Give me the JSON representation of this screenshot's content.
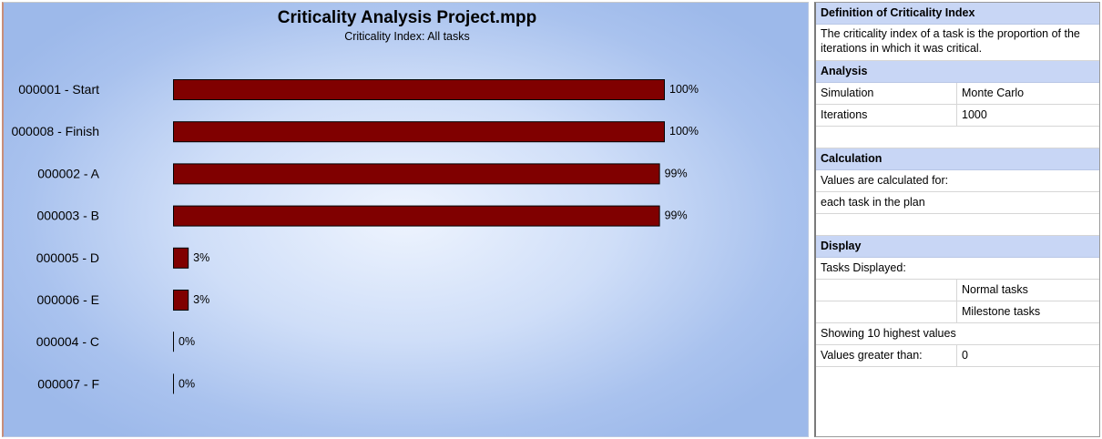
{
  "chart_data": {
    "type": "bar",
    "orientation": "horizontal",
    "title": "Criticality Analysis Project.mpp",
    "subtitle": "Criticality Index: All tasks",
    "categories": [
      "000001 - Start",
      "000008 - Finish",
      "000002 - A",
      "000003 - B",
      "000005 - D",
      "000006 - E",
      "000004 - C",
      "000007 - F"
    ],
    "values": [
      100,
      100,
      99,
      99,
      3,
      3,
      0,
      0
    ],
    "value_labels": [
      "100%",
      "100%",
      "99%",
      "99%",
      "3%",
      "3%",
      "0%",
      "0%"
    ],
    "xlim": [
      0,
      100
    ],
    "bar_color": "#800000",
    "grid": false
  },
  "side": {
    "definition_title": "Definition of Criticality Index",
    "definition_text": "The criticality index of a task is the proportion of the iterations in which it was critical.",
    "analysis_title": "Analysis",
    "analysis_rows": [
      {
        "label": "Simulation",
        "value": "Monte Carlo"
      },
      {
        "label": "Iterations",
        "value": "1000"
      }
    ],
    "calculation_title": "Calculation",
    "calc_line1": "Values are calculated for:",
    "calc_line2": "each task in the plan",
    "display_title": "Display",
    "tasks_displayed_label": "Tasks Displayed:",
    "task_types": [
      "Normal tasks",
      "Milestone tasks"
    ],
    "showing_text": "Showing 10 highest values",
    "greater_than_label": "Values greater than:",
    "greater_than_value": "0"
  }
}
